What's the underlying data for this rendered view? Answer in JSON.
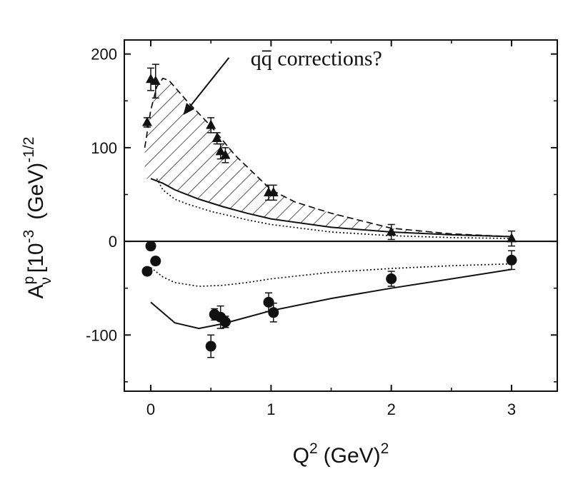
{
  "chart_data": {
    "type": "scatter",
    "xlabel_main": "Q",
    "xlabel_exp": "2",
    "xlabel_unit": "(GeV)",
    "xlabel_unit_exp": "2",
    "ylabel_main": "A",
    "ylabel_sup": "p",
    "ylabel_sub": "ν",
    "ylabel_rest": "[10",
    "ylabel_exp": "-3",
    "ylabel_unit": "(GeV)",
    "ylabel_unit_exp": "-1/2",
    "xlim": [
      -0.22,
      3.38
    ],
    "ylim": [
      -160,
      215
    ],
    "xticks": [
      {
        "v": 0,
        "label": "0"
      },
      {
        "v": 1,
        "label": "1"
      },
      {
        "v": 2,
        "label": "2"
      },
      {
        "v": 3,
        "label": "3"
      }
    ],
    "xminor": [
      0.5,
      1.5,
      2.5
    ],
    "yticks": [
      {
        "v": -100,
        "label": "-100"
      },
      {
        "v": 0,
        "label": "0"
      },
      {
        "v": 100,
        "label": "100"
      },
      {
        "v": 200,
        "label": "200"
      }
    ],
    "yminor": [
      -150,
      -50,
      50,
      150
    ],
    "annotation": {
      "prefix": "q",
      "bar_letter": "q",
      "suffix": " corrections?",
      "text_at": [
        0.83,
        188
      ],
      "arrow_from": [
        0.65,
        196
      ],
      "arrow_to": [
        0.27,
        135
      ]
    },
    "series": [
      {
        "name": "triangles",
        "marker": "triangle",
        "points": [
          {
            "x": -0.03,
            "y": 127,
            "err": 5
          },
          {
            "x": 0.0,
            "y": 173,
            "err": 12
          },
          {
            "x": 0.04,
            "y": 171,
            "err": 18
          },
          {
            "x": 0.5,
            "y": 124,
            "err": 8
          },
          {
            "x": 0.55,
            "y": 110,
            "err": 6
          },
          {
            "x": 0.58,
            "y": 96,
            "err": 8
          },
          {
            "x": 0.62,
            "y": 92,
            "err": 8
          },
          {
            "x": 0.98,
            "y": 52,
            "err": 8
          },
          {
            "x": 1.02,
            "y": 52,
            "err": 8
          },
          {
            "x": 2.0,
            "y": 10,
            "err": 8
          },
          {
            "x": 3.0,
            "y": 3,
            "err": 8
          }
        ]
      },
      {
        "name": "circles",
        "marker": "circle",
        "points": [
          {
            "x": -0.03,
            "y": -32,
            "err": 4
          },
          {
            "x": 0.0,
            "y": -5,
            "err": 3
          },
          {
            "x": 0.04,
            "y": -21,
            "err": 4
          },
          {
            "x": 0.5,
            "y": -112,
            "err": 12
          },
          {
            "x": 0.53,
            "y": -78,
            "err": 6
          },
          {
            "x": 0.58,
            "y": -81,
            "err": 12
          },
          {
            "x": 0.62,
            "y": -86,
            "err": 6
          },
          {
            "x": 0.98,
            "y": -65,
            "err": 10
          },
          {
            "x": 1.02,
            "y": -76,
            "err": 10
          },
          {
            "x": 2.0,
            "y": -40,
            "err": 8
          },
          {
            "x": 3.0,
            "y": -20,
            "err": 10
          }
        ]
      }
    ],
    "curves": [
      {
        "name": "solid-upper",
        "style": "solid",
        "points": [
          [
            0,
            67
          ],
          [
            0.1,
            62
          ],
          [
            0.2,
            55
          ],
          [
            0.4,
            45
          ],
          [
            0.6,
            37
          ],
          [
            0.8,
            30
          ],
          [
            1.0,
            24
          ],
          [
            1.5,
            15
          ],
          [
            2.0,
            10
          ],
          [
            2.5,
            7
          ],
          [
            3.0,
            5
          ]
        ]
      },
      {
        "name": "dotted-upper",
        "style": "dotted",
        "points": [
          [
            0.05,
            67
          ],
          [
            0.1,
            55
          ],
          [
            0.2,
            45
          ],
          [
            0.3,
            40
          ],
          [
            0.5,
            32
          ],
          [
            0.8,
            23
          ],
          [
            1.0,
            18
          ],
          [
            1.5,
            10
          ],
          [
            2.0,
            6
          ],
          [
            2.5,
            4
          ],
          [
            3.0,
            3
          ]
        ]
      },
      {
        "name": "dashed-upper",
        "style": "dashed",
        "points": [
          [
            -0.05,
            100
          ],
          [
            0.0,
            140
          ],
          [
            0.05,
            165
          ],
          [
            0.1,
            174
          ],
          [
            0.15,
            172
          ],
          [
            0.3,
            150
          ],
          [
            0.5,
            123
          ],
          [
            0.7,
            92
          ],
          [
            1.0,
            55
          ],
          [
            1.2,
            42
          ],
          [
            1.5,
            30
          ],
          [
            2.0,
            14
          ],
          [
            2.5,
            8
          ],
          [
            3.0,
            5
          ]
        ]
      },
      {
        "name": "solid-lower",
        "style": "solid",
        "points": [
          [
            0,
            -65
          ],
          [
            0.2,
            -87
          ],
          [
            0.4,
            -93
          ],
          [
            0.6,
            -88
          ],
          [
            0.8,
            -81
          ],
          [
            1.0,
            -74
          ],
          [
            1.5,
            -61
          ],
          [
            2.0,
            -50
          ],
          [
            2.5,
            -40
          ],
          [
            3.0,
            -30
          ]
        ]
      },
      {
        "name": "dotted-lower",
        "style": "dotted",
        "points": [
          [
            0.0,
            -28
          ],
          [
            0.1,
            -38
          ],
          [
            0.2,
            -44
          ],
          [
            0.4,
            -48
          ],
          [
            0.6,
            -47
          ],
          [
            0.8,
            -44
          ],
          [
            1.0,
            -40
          ],
          [
            1.5,
            -33
          ],
          [
            2.0,
            -29
          ],
          [
            2.5,
            -26
          ],
          [
            3.0,
            -24
          ]
        ]
      }
    ],
    "hatched_band": {
      "upper_curve": "dashed-upper",
      "lower_curve": "solid-upper",
      "x_range": [
        -0.05,
        3.0
      ]
    }
  }
}
